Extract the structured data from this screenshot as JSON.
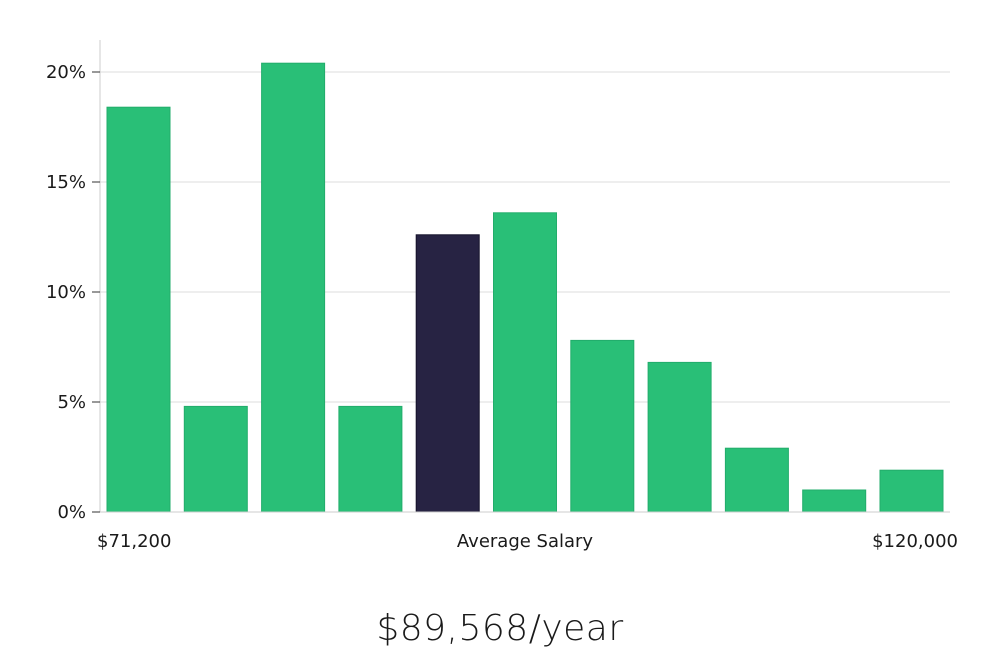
{
  "chart_data": {
    "type": "bar",
    "values": [
      18.4,
      4.8,
      20.4,
      4.8,
      12.6,
      13.6,
      7.8,
      6.8,
      2.9,
      1.0,
      1.9
    ],
    "highlight_index": 4,
    "ylim": [
      0,
      22
    ],
    "yticks": [
      0,
      5,
      10,
      15,
      20
    ],
    "ytick_labels": [
      "0%",
      "5%",
      "10%",
      "15%",
      "20%"
    ],
    "x_min_label": "$71,200",
    "x_center_label": "Average Salary",
    "x_max_label": "$120,000",
    "grid": true,
    "colors": {
      "bar": "#29bf77",
      "highlight": "#272343",
      "grid": "#dcdcdc",
      "axis": "#cccccc"
    }
  },
  "salary": {
    "average_text": "$89,568/year"
  }
}
